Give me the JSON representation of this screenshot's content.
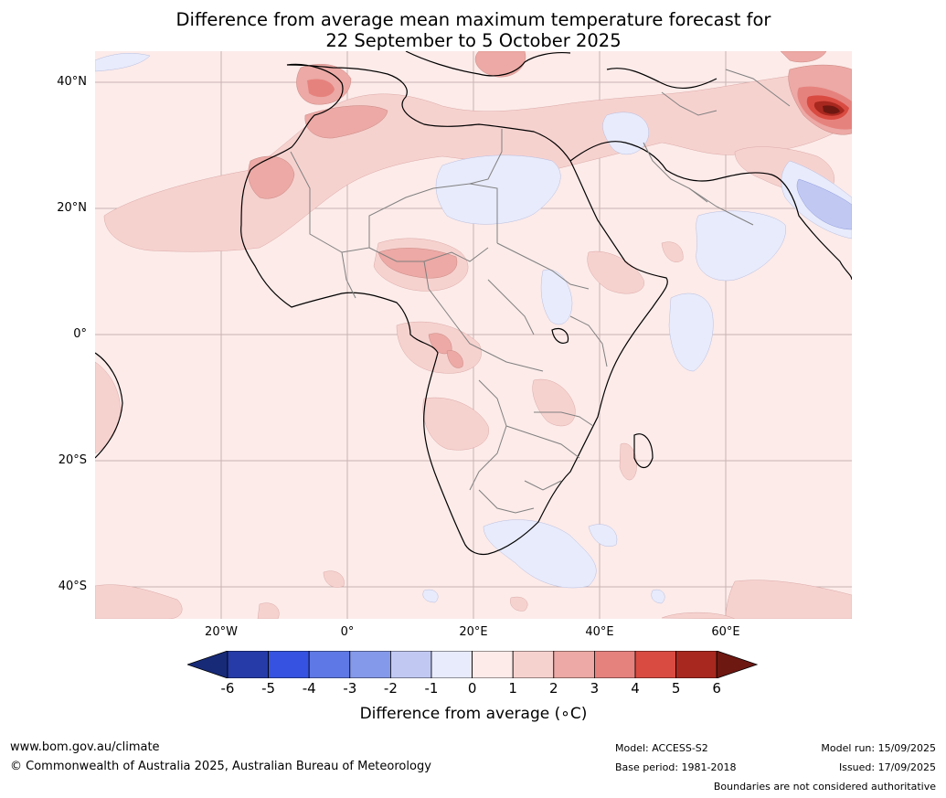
{
  "title_line1": "Difference from average mean maximum temperature forecast for",
  "title_line2": "22 September to 5 October 2025",
  "latitude_labels": [
    "40°N",
    "20°N",
    "0°",
    "20°S",
    "40°S"
  ],
  "longitude_labels": [
    "20°W",
    "0°",
    "20°E",
    "40°E",
    "60°E"
  ],
  "colorbar": {
    "title": "Difference from average (∘C)",
    "ticks": [
      "-6",
      "-5",
      "-4",
      "-3",
      "-2",
      "-1",
      "0",
      "1",
      "2",
      "3",
      "4",
      "5",
      "6"
    ],
    "colors": [
      "#263ba8",
      "#3553e0",
      "#5e78e5",
      "#8599ea",
      "#c1c9f3",
      "#e8ebfb",
      "#fcebe9",
      "#f6d2cf",
      "#eca9a5",
      "#e6827e",
      "#d94b41",
      "#a8281f"
    ],
    "under_color": "#172a78",
    "over_color": "#6e1812"
  },
  "footer": {
    "website": "www.bom.gov.au/climate",
    "copyright": "© Commonwealth of Australia 2025, Australian Bureau of Meteorology",
    "model": "Model: ACCESS-S2",
    "base_period": "Base period: 1981-2018",
    "model_run": "Model run: 15/09/2025",
    "issued": "Issued: 17/09/2025",
    "disclaimer": "Boundaries are not considered authoritative"
  }
}
